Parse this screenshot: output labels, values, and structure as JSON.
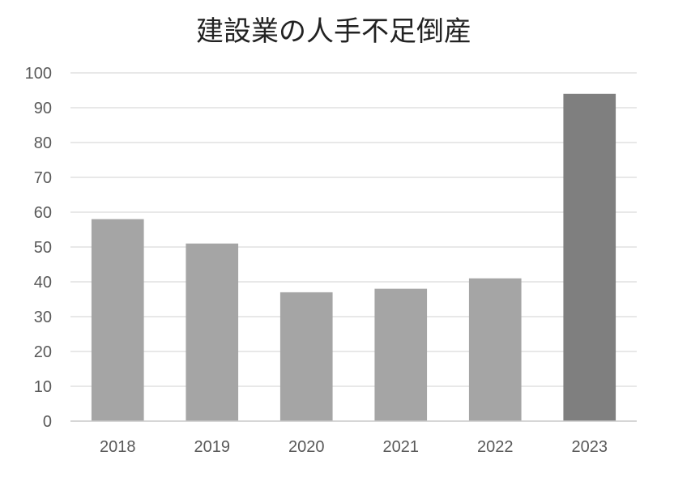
{
  "chart_data": {
    "type": "bar",
    "title": "建設業の人手不足倒産",
    "xlabel": "",
    "ylabel": "",
    "categories": [
      "2018",
      "2019",
      "2020",
      "2021",
      "2022",
      "2023"
    ],
    "values": [
      58,
      51,
      37,
      38,
      41,
      94
    ],
    "ylim": [
      0,
      100
    ],
    "yticks": [
      0,
      10,
      20,
      30,
      40,
      50,
      60,
      70,
      80,
      90,
      100
    ],
    "grid": true,
    "legend": "none",
    "colors": {
      "bar": "#a5a5a5",
      "highlight_bar": "#7f7f7f",
      "highlight_category": "2023"
    }
  }
}
